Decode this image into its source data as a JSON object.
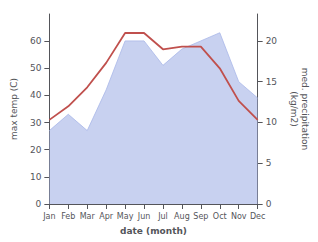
{
  "chart_data": {
    "type": "line",
    "xlabel": "date (month)",
    "ylabel": "max temp (C)",
    "y2label": "med. precipitation\n(kg/m2)",
    "categories": [
      "Jan",
      "Feb",
      "Mar",
      "Apr",
      "May",
      "Jun",
      "Jul",
      "Aug",
      "Sep",
      "Oct",
      "Nov",
      "Dec"
    ],
    "series": [
      {
        "type": "area",
        "axis": "y2",
        "color": "#aab8e8",
        "values": [
          9,
          11,
          9,
          14,
          20,
          20,
          17,
          19,
          20,
          21,
          15,
          13
        ]
      },
      {
        "type": "line",
        "axis": "y",
        "color": "#c0504d",
        "values": [
          31,
          36,
          43,
          52,
          63,
          63,
          57,
          58,
          58,
          50,
          38,
          31
        ]
      }
    ],
    "ylim": [
      0,
      70
    ],
    "yticks": [
      0,
      10,
      20,
      30,
      40,
      50,
      60
    ],
    "y2lim": [
      0,
      23.3
    ],
    "y2ticks": [
      0,
      5,
      10,
      15,
      20
    ],
    "grid": false
  }
}
